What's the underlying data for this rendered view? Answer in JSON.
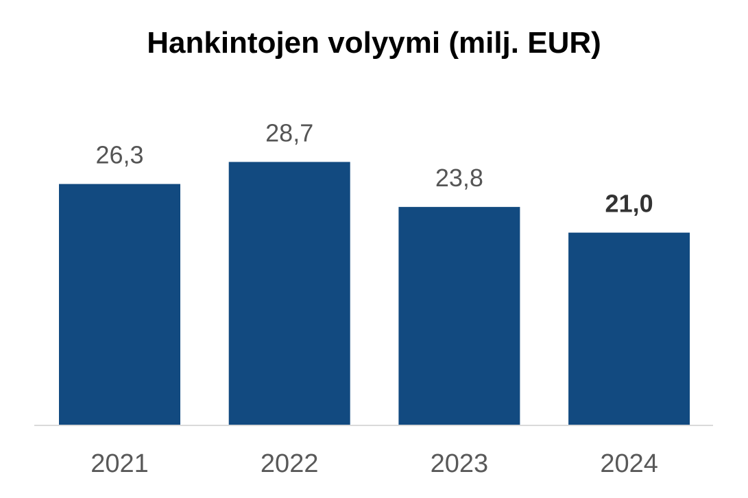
{
  "chart_data": {
    "type": "bar",
    "title": "Hankintojen volyymi (milj. EUR)",
    "categories": [
      "2021",
      "2022",
      "2023",
      "2024"
    ],
    "values": [
      26.3,
      28.7,
      23.8,
      21.0
    ],
    "value_labels": [
      "26,3",
      "28,7",
      "23,8",
      "21,0"
    ],
    "emphasized_index": 3,
    "xlabel": "",
    "ylabel": "",
    "ylim": [
      0,
      30
    ],
    "grid": false,
    "legend": "none",
    "colors": {
      "bar": "#124A80",
      "baseline": "#D9D9D9",
      "value_label": "#555555",
      "value_label_emphasized": "#333333",
      "tick_label": "#595959",
      "title": "#000000"
    }
  }
}
